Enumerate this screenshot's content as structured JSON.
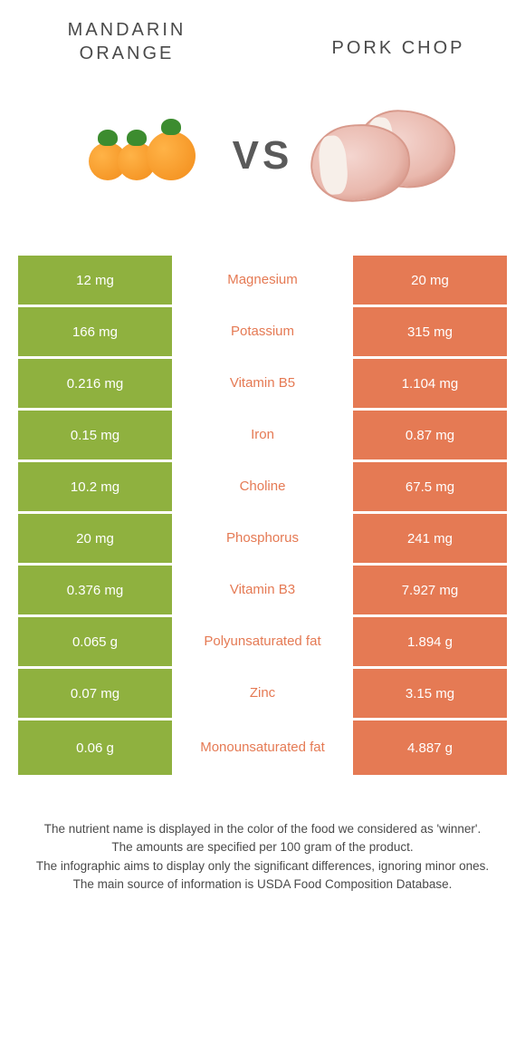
{
  "colors": {
    "left": "#8fb13f",
    "right": "#e57a54",
    "text_dark": "#4a4a4a"
  },
  "foods": {
    "left_title": "Mandarin Orange",
    "right_title": "Pork chop",
    "vs_label": "VS"
  },
  "rows": [
    {
      "left": "12 mg",
      "label": "Magnesium",
      "right": "20 mg",
      "winner": "right",
      "tall": false
    },
    {
      "left": "166 mg",
      "label": "Potassium",
      "right": "315 mg",
      "winner": "right",
      "tall": false
    },
    {
      "left": "0.216 mg",
      "label": "Vitamin B5",
      "right": "1.104 mg",
      "winner": "right",
      "tall": false
    },
    {
      "left": "0.15 mg",
      "label": "Iron",
      "right": "0.87 mg",
      "winner": "right",
      "tall": false
    },
    {
      "left": "10.2 mg",
      "label": "Choline",
      "right": "67.5 mg",
      "winner": "right",
      "tall": false
    },
    {
      "left": "20 mg",
      "label": "Phosphorus",
      "right": "241 mg",
      "winner": "right",
      "tall": false
    },
    {
      "left": "0.376 mg",
      "label": "Vitamin B3",
      "right": "7.927 mg",
      "winner": "right",
      "tall": false
    },
    {
      "left": "0.065 g",
      "label": "Polyunsaturated fat",
      "right": "1.894 g",
      "winner": "right",
      "tall": false
    },
    {
      "left": "0.07 mg",
      "label": "Zinc",
      "right": "3.15 mg",
      "winner": "right",
      "tall": false
    },
    {
      "left": "0.06 g",
      "label": "Monounsaturated fat",
      "right": "4.887 g",
      "winner": "right",
      "tall": true
    }
  ],
  "footer": {
    "line1": "The nutrient name is displayed in the color of the food we considered as 'winner'.",
    "line2": "The amounts are specified per 100 gram of the product.",
    "line3": "The infographic aims to display only the significant differences, ignoring minor ones.",
    "line4": "The main source of information is USDA Food Composition Database."
  }
}
